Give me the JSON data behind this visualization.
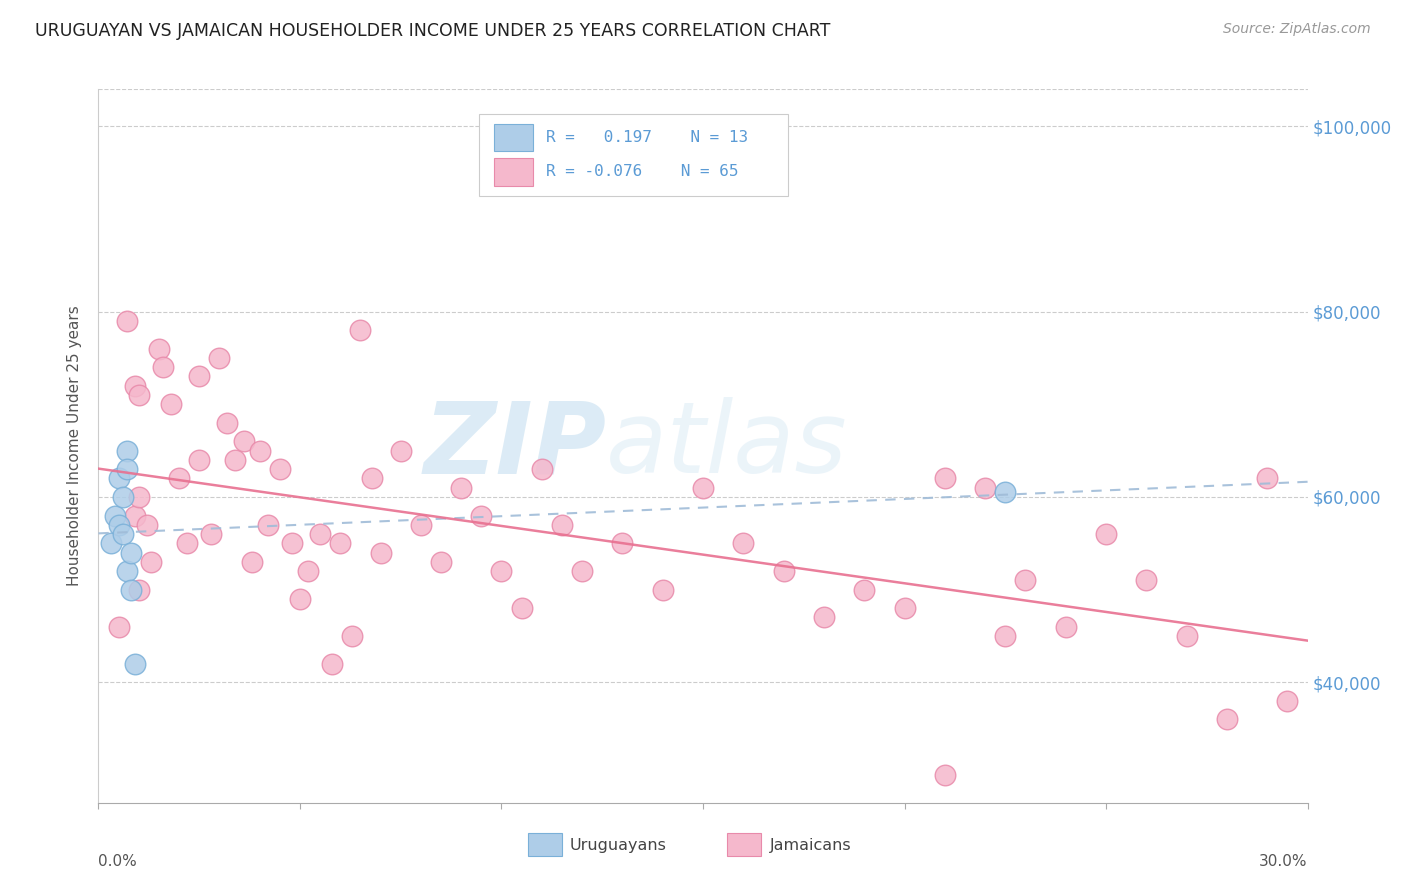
{
  "title": "URUGUAYAN VS JAMAICAN HOUSEHOLDER INCOME UNDER 25 YEARS CORRELATION CHART",
  "source": "Source: ZipAtlas.com",
  "ylabel": "Householder Income Under 25 years",
  "xmin": 0.0,
  "xmax": 0.3,
  "ymin": 27000,
  "ymax": 104000,
  "yticks": [
    40000,
    60000,
    80000,
    100000
  ],
  "ytick_labels": [
    "$40,000",
    "$60,000",
    "$80,000",
    "$100,000"
  ],
  "watermark_zip": "ZIP",
  "watermark_atlas": "atlas",
  "uruguayan_color": "#aecde8",
  "jamaican_color": "#f5b8cc",
  "uruguayan_edge": "#7ab0d8",
  "jamaican_edge": "#e88aaa",
  "trend_uruguayan_color": "#9bbfd8",
  "trend_jamaican_color": "#e87090",
  "uruguayan_x": [
    0.003,
    0.004,
    0.005,
    0.005,
    0.006,
    0.006,
    0.007,
    0.007,
    0.007,
    0.008,
    0.008,
    0.009,
    0.225
  ],
  "uruguayan_y": [
    55000,
    58000,
    57000,
    62000,
    60000,
    56000,
    65000,
    63000,
    52000,
    54000,
    50000,
    42000,
    60500
  ],
  "jamaican_x": [
    0.005,
    0.007,
    0.009,
    0.009,
    0.01,
    0.01,
    0.01,
    0.012,
    0.013,
    0.015,
    0.016,
    0.018,
    0.02,
    0.022,
    0.025,
    0.025,
    0.028,
    0.03,
    0.032,
    0.034,
    0.036,
    0.038,
    0.04,
    0.042,
    0.045,
    0.048,
    0.05,
    0.052,
    0.055,
    0.058,
    0.06,
    0.063,
    0.065,
    0.068,
    0.07,
    0.075,
    0.08,
    0.085,
    0.09,
    0.095,
    0.1,
    0.105,
    0.11,
    0.115,
    0.12,
    0.13,
    0.14,
    0.15,
    0.16,
    0.17,
    0.18,
    0.19,
    0.2,
    0.21,
    0.22,
    0.225,
    0.23,
    0.24,
    0.25,
    0.26,
    0.27,
    0.28,
    0.29,
    0.295,
    0.21
  ],
  "jamaican_y": [
    46000,
    79000,
    72000,
    58000,
    71000,
    60000,
    50000,
    57000,
    53000,
    76000,
    74000,
    70000,
    62000,
    55000,
    73000,
    64000,
    56000,
    75000,
    68000,
    64000,
    66000,
    53000,
    65000,
    57000,
    63000,
    55000,
    49000,
    52000,
    56000,
    42000,
    55000,
    45000,
    78000,
    62000,
    54000,
    65000,
    57000,
    53000,
    61000,
    58000,
    52000,
    48000,
    63000,
    57000,
    52000,
    55000,
    50000,
    61000,
    55000,
    52000,
    47000,
    50000,
    48000,
    62000,
    61000,
    45000,
    51000,
    46000,
    56000,
    51000,
    45000,
    36000,
    62000,
    38000,
    30000
  ],
  "blue_trend_start_x": 0.0,
  "blue_trend_end_x": 0.3,
  "pink_trend_start_x": 0.0,
  "pink_trend_end_x": 0.3
}
